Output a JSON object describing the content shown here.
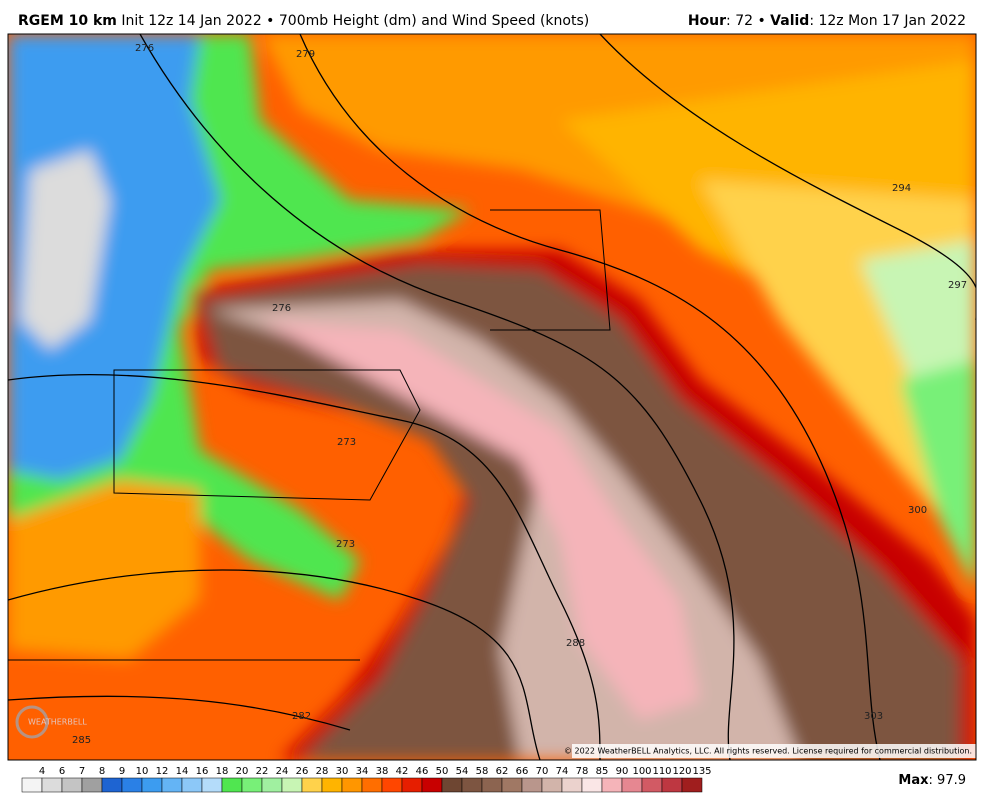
{
  "header": {
    "model": "RGEM 10 km",
    "description": "Init 12z 14 Jan 2022 • 700mb Height (dm) and Wind Speed (knots)",
    "hour_label": "Hour",
    "hour_value": ": 72 • ",
    "valid_label": "Valid",
    "valid_value": ": 12z Mon 17 Jan 2022"
  },
  "contour_labels": [
    "276",
    "279",
    "276",
    "273",
    "273",
    "282",
    "285",
    "288",
    "294",
    "297",
    "300",
    "303"
  ],
  "logo": "WEATHERBELL",
  "copyright": "© 2022 WeatherBELL Analytics, LLC. All rights reserved. License required for commercial distribution.",
  "colorbar": [
    {
      "label": 4,
      "color": "#f4f4f4"
    },
    {
      "label": 6,
      "color": "#dcdcdc"
    },
    {
      "label": 7,
      "color": "#c4c4c4"
    },
    {
      "label": 8,
      "color": "#a0a0a0"
    },
    {
      "label": 9,
      "color": "#1e64d2"
    },
    {
      "label": 10,
      "color": "#2a80e6"
    },
    {
      "label": 12,
      "color": "#3c9cf0"
    },
    {
      "label": 14,
      "color": "#64b4f5"
    },
    {
      "label": 16,
      "color": "#8cc8f8"
    },
    {
      "label": 18,
      "color": "#b4dcfa"
    },
    {
      "label": 20,
      "color": "#50e650"
    },
    {
      "label": 22,
      "color": "#78f078"
    },
    {
      "label": 24,
      "color": "#a0f0a0"
    },
    {
      "label": 26,
      "color": "#c8f5b4"
    },
    {
      "label": 28,
      "color": "#ffd24b"
    },
    {
      "label": 30,
      "color": "#ffb400"
    },
    {
      "label": 34,
      "color": "#ff9600"
    },
    {
      "label": 38,
      "color": "#ff6e00"
    },
    {
      "label": 42,
      "color": "#ff4600"
    },
    {
      "label": 46,
      "color": "#e61e00"
    },
    {
      "label": 50,
      "color": "#c80000"
    },
    {
      "label": 54,
      "color": "#6e4632"
    },
    {
      "label": 58,
      "color": "#7d5541"
    },
    {
      "label": 62,
      "color": "#8c6450"
    },
    {
      "label": 66,
      "color": "#a07864"
    },
    {
      "label": 70,
      "color": "#b9968c"
    },
    {
      "label": 74,
      "color": "#d2b4aa"
    },
    {
      "label": 78,
      "color": "#ebd2cd"
    },
    {
      "label": 85,
      "color": "#fae6e6"
    },
    {
      "label": 90,
      "color": "#f5b4b9"
    },
    {
      "label": 100,
      "color": "#e68791"
    },
    {
      "label": 110,
      "color": "#d25a64"
    },
    {
      "label": 120,
      "color": "#be3741"
    },
    {
      "label": 135,
      "color": "#a01e1e"
    }
  ],
  "max": {
    "label": "Max",
    "value": ": 97.9"
  }
}
